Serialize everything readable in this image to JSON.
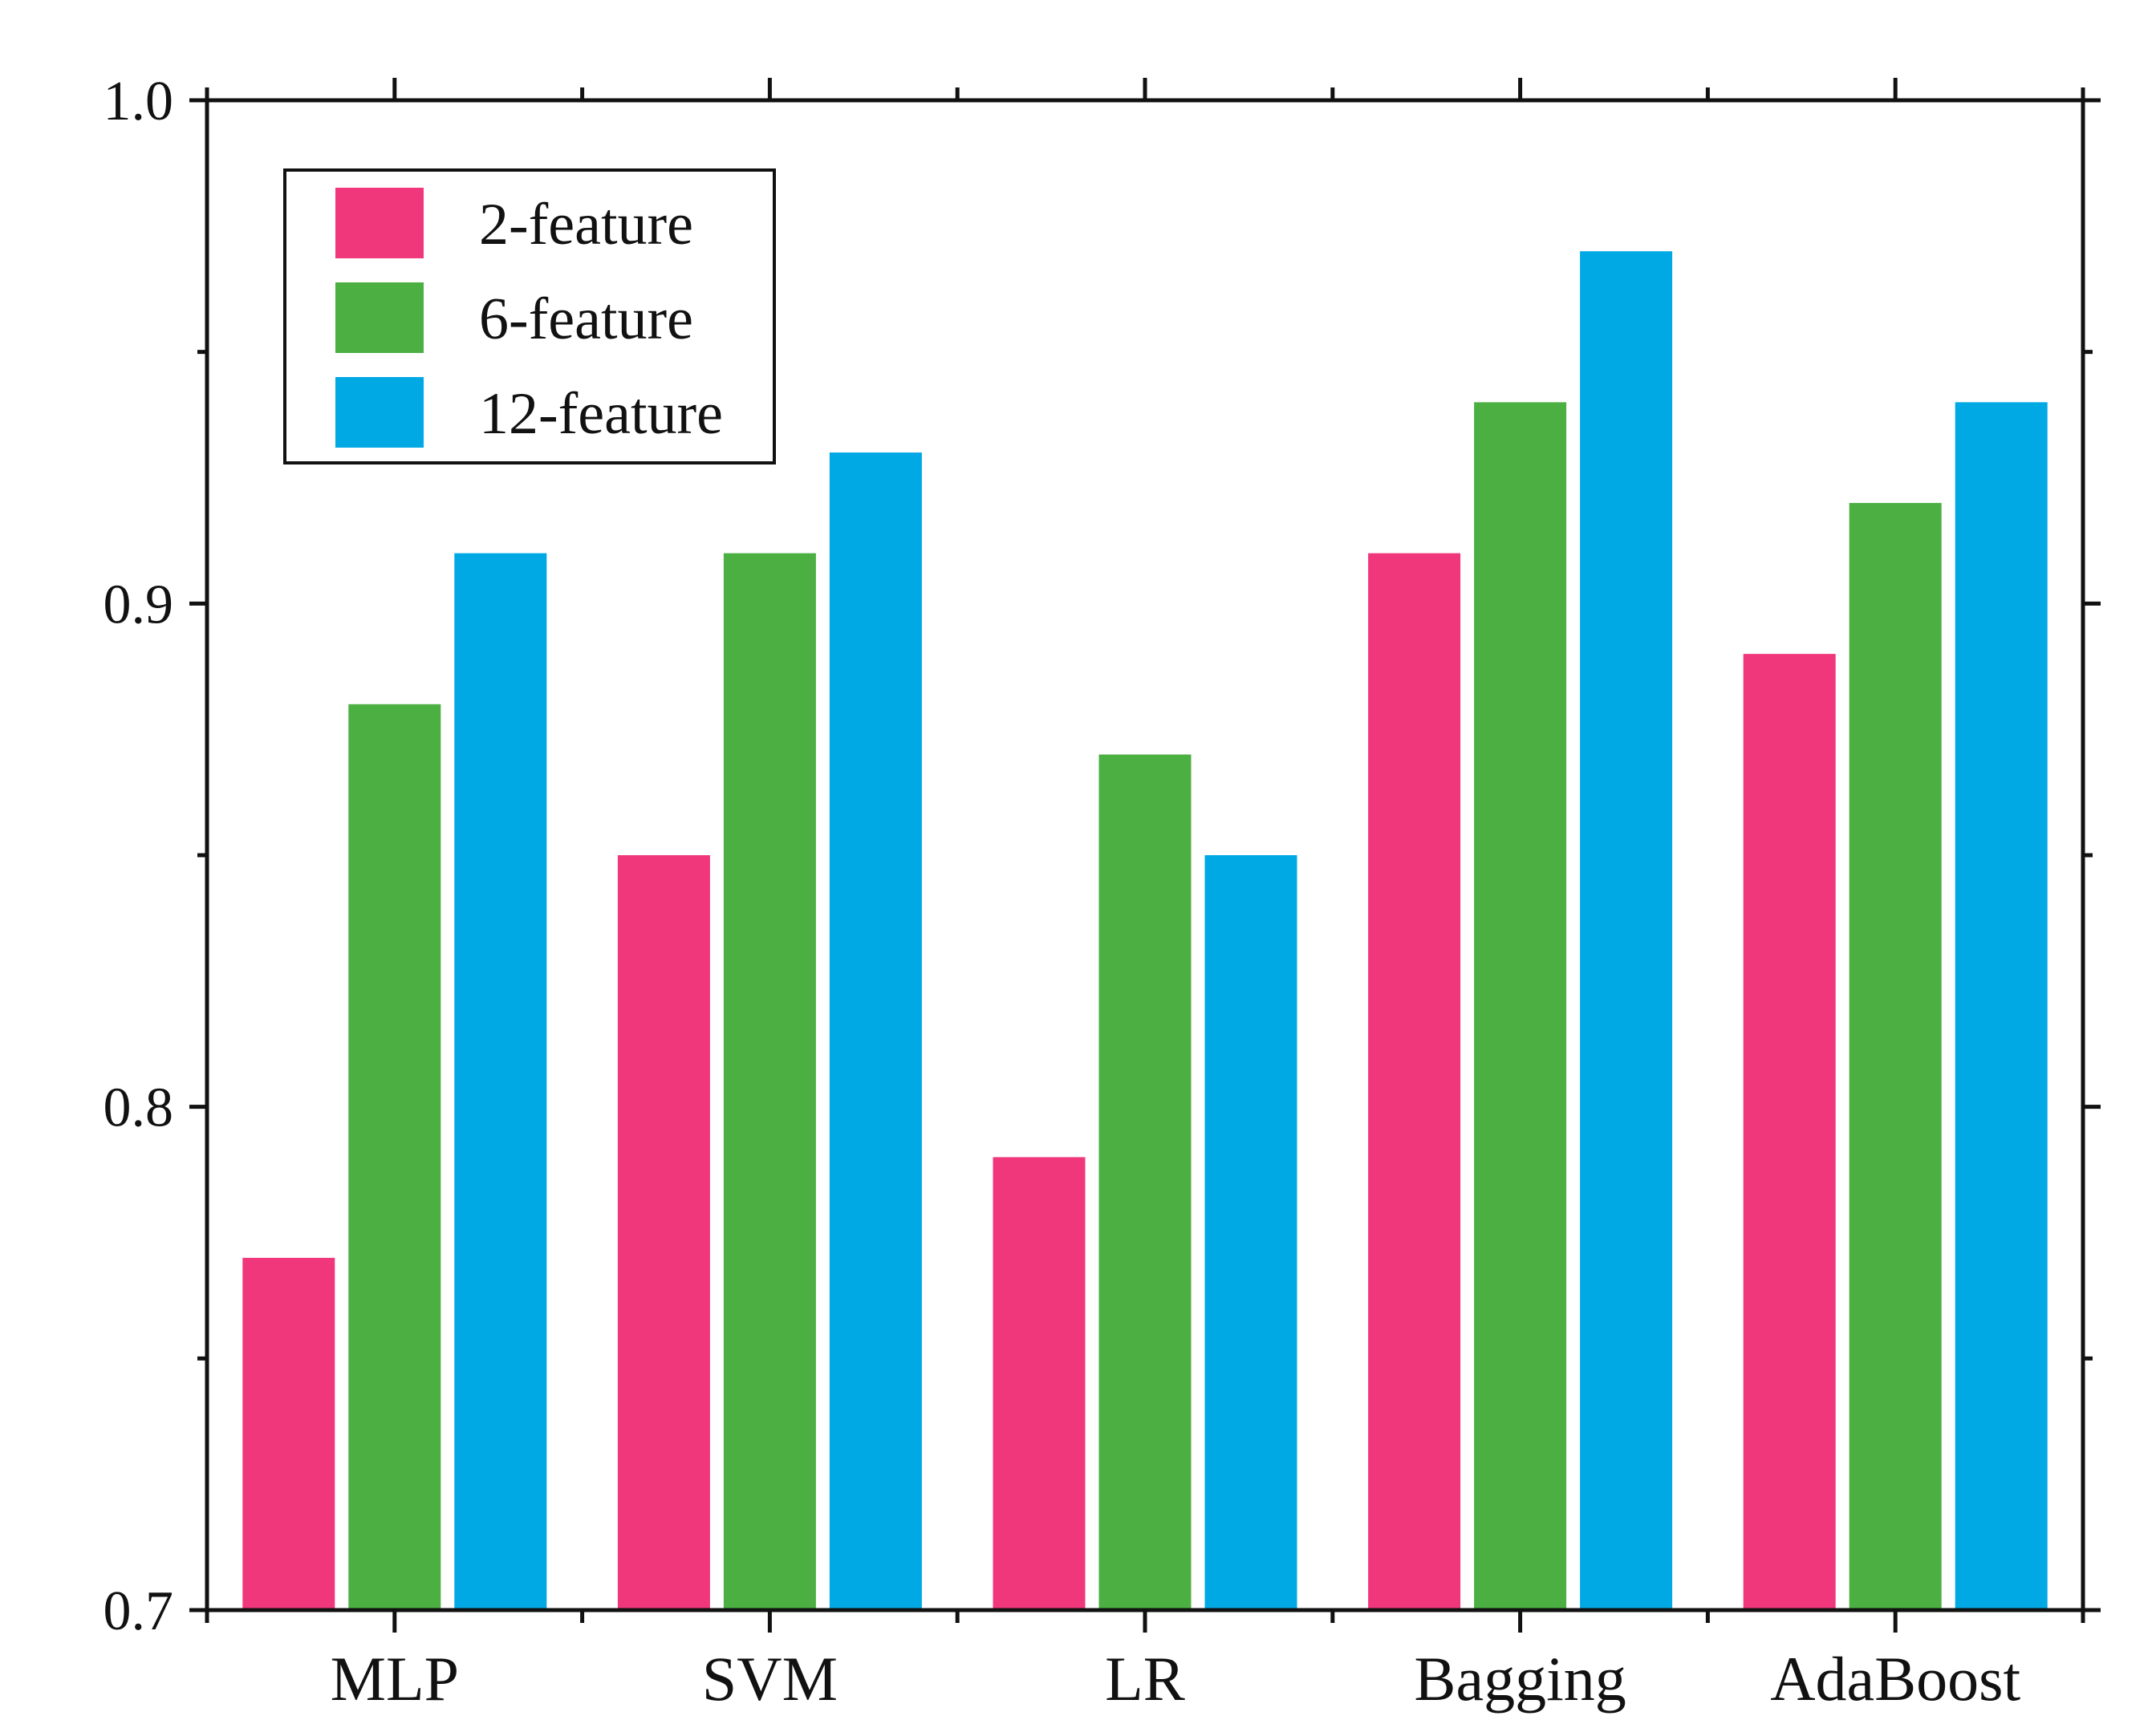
{
  "chart_data": {
    "type": "bar",
    "title": "",
    "xlabel": "",
    "ylabel": "",
    "ylim": [
      0.7,
      1.0
    ],
    "yticks": [
      0.7,
      0.8,
      0.9,
      1.0
    ],
    "ytick_labels": [
      "0.7",
      "0.8",
      "0.9",
      "1.0"
    ],
    "categories": [
      "MLP",
      "SVM",
      "LR",
      "Bagging",
      "AdaBoost"
    ],
    "series": [
      {
        "name": "2-feature",
        "color": "#F0377C",
        "values": [
          0.77,
          0.85,
          0.79,
          0.91,
          0.89
        ]
      },
      {
        "name": "6-feature",
        "color": "#4CAF42",
        "values": [
          0.88,
          0.91,
          0.87,
          0.94,
          0.92
        ]
      },
      {
        "name": "12-feature",
        "color": "#00A8E4",
        "values": [
          0.91,
          0.93,
          0.85,
          0.97,
          0.94
        ]
      }
    ],
    "legend_position": "top-left",
    "grid": false
  }
}
